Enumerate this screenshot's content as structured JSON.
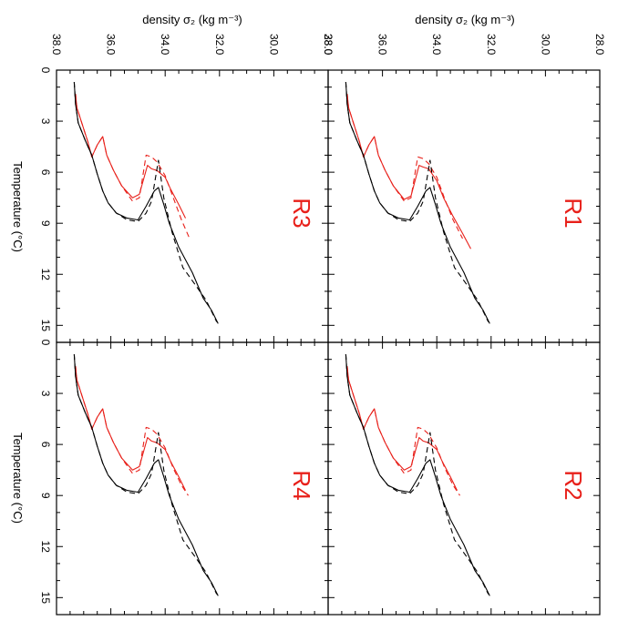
{
  "figure": {
    "x_axis_label": "density σ₂ (kg m⁻³)",
    "y_axis_label": "Temperature (°C)"
  },
  "chart_data": [
    {
      "type": "line",
      "panel": "R3",
      "title": "R3",
      "xlabel": "density σ₂ (kg m⁻³)",
      "ylabel": "Temperature (°C)",
      "xlim": [
        38.0,
        28.0
      ],
      "ylim": [
        0,
        16
      ],
      "x_ticks": [
        "38.0",
        "36.0",
        "34.0",
        "32.0",
        "30.0",
        "28.0"
      ],
      "y_ticks": [
        "0",
        "3",
        "6",
        "9",
        "12",
        "15"
      ],
      "series": [
        {
          "color": "#e8201a",
          "dash": "solid",
          "x": [
            37.3,
            37.25,
            37.05,
            36.85,
            36.7,
            36.5,
            36.3,
            36.15,
            35.9,
            35.6,
            35.2,
            34.95,
            34.65,
            34.5,
            34.3,
            34.0,
            33.8,
            33.5,
            33.25
          ],
          "y": [
            1.4,
            2.2,
            3.2,
            4.2,
            5.1,
            4.4,
            3.9,
            5.0,
            5.9,
            6.8,
            7.5,
            7.3,
            5.6,
            5.8,
            5.9,
            6.3,
            7.0,
            7.9,
            8.7
          ]
        },
        {
          "color": "#e8201a",
          "dash": "dashed",
          "x": [
            37.3,
            37.25,
            37.05,
            36.85,
            36.7,
            36.5,
            36.3,
            36.15,
            35.9,
            35.6,
            35.2,
            34.95,
            34.7,
            34.5,
            34.3,
            34.0,
            33.7,
            33.4,
            33.1
          ],
          "y": [
            1.4,
            2.2,
            3.2,
            4.2,
            5.1,
            4.4,
            3.9,
            5.0,
            5.9,
            6.8,
            7.7,
            7.5,
            5.0,
            5.1,
            5.4,
            6.2,
            7.5,
            8.8,
            9.9
          ]
        },
        {
          "color": "#000000",
          "dash": "solid",
          "x": [
            37.35,
            37.3,
            37.2,
            36.95,
            36.7,
            36.5,
            36.3,
            36.1,
            35.8,
            35.4,
            35.0,
            34.7,
            34.4,
            34.25,
            34.05,
            33.85,
            33.5,
            33.0,
            32.6,
            32.3,
            32.05
          ],
          "y": [
            0.7,
            2.0,
            3.1,
            4.1,
            5.0,
            6.1,
            7.1,
            7.8,
            8.4,
            8.7,
            8.8,
            8.0,
            7.1,
            6.9,
            7.9,
            9.0,
            10.4,
            11.9,
            13.4,
            14.1,
            14.9
          ]
        },
        {
          "color": "#000000",
          "dash": "dashed",
          "x": [
            37.35,
            37.3,
            37.2,
            36.95,
            36.7,
            36.5,
            36.3,
            36.1,
            35.8,
            35.4,
            35.0,
            34.7,
            34.5,
            34.25,
            34.05,
            33.75,
            33.35,
            32.9,
            32.5,
            32.1
          ],
          "y": [
            0.7,
            2.0,
            3.1,
            4.1,
            5.0,
            6.1,
            7.1,
            7.8,
            8.4,
            8.8,
            8.9,
            8.4,
            7.7,
            5.3,
            7.5,
            9.5,
            11.6,
            12.6,
            13.5,
            14.8
          ]
        }
      ]
    },
    {
      "type": "line",
      "panel": "R1",
      "title": "R1",
      "xlabel": "density σ₂ (kg m⁻³)",
      "ylabel": "",
      "xlim": [
        38.0,
        28.0
      ],
      "ylim": [
        0,
        16
      ],
      "x_ticks": [
        "38.0",
        "36.0",
        "34.0",
        "32.0",
        "30.0",
        "28.0"
      ],
      "series": [
        {
          "color": "#e8201a",
          "dash": "solid",
          "x": [
            37.3,
            37.25,
            37.05,
            36.85,
            36.7,
            36.5,
            36.3,
            36.15,
            35.9,
            35.6,
            35.2,
            34.95,
            34.65,
            34.5,
            34.3,
            34.0,
            33.75,
            33.4,
            33.05,
            32.75
          ],
          "y": [
            1.4,
            2.2,
            3.2,
            4.2,
            5.1,
            4.4,
            3.9,
            5.0,
            5.9,
            6.8,
            7.6,
            7.4,
            5.6,
            5.7,
            5.8,
            6.5,
            7.5,
            8.6,
            9.6,
            10.5
          ]
        },
        {
          "color": "#e8201a",
          "dash": "dashed",
          "x": [
            37.3,
            37.25,
            37.05,
            36.85,
            36.7,
            36.5,
            36.3,
            36.15,
            35.9,
            35.6,
            35.2,
            34.95,
            34.7,
            34.5,
            34.3,
            34.0,
            33.7,
            33.4,
            33.05
          ],
          "y": [
            1.4,
            2.2,
            3.2,
            4.2,
            5.1,
            4.4,
            3.9,
            5.0,
            5.9,
            6.8,
            7.7,
            7.5,
            5.1,
            5.2,
            5.5,
            6.3,
            7.6,
            8.8,
            9.9
          ]
        },
        {
          "color": "#000000",
          "dash": "solid",
          "x": [
            37.35,
            37.3,
            37.2,
            36.95,
            36.7,
            36.5,
            36.3,
            36.1,
            35.8,
            35.4,
            35.0,
            34.7,
            34.4,
            34.25,
            34.05,
            33.85,
            33.5,
            33.0,
            32.6,
            32.3,
            32.05
          ],
          "y": [
            0.7,
            2.0,
            3.1,
            4.1,
            5.0,
            6.1,
            7.1,
            7.8,
            8.4,
            8.7,
            8.8,
            8.0,
            7.1,
            6.9,
            7.9,
            9.0,
            10.4,
            11.9,
            13.4,
            14.1,
            14.9
          ]
        },
        {
          "color": "#000000",
          "dash": "dashed",
          "x": [
            37.35,
            37.3,
            37.2,
            36.95,
            36.7,
            36.5,
            36.3,
            36.1,
            35.8,
            35.4,
            35.0,
            34.7,
            34.5,
            34.25,
            34.05,
            33.75,
            33.35,
            32.9,
            32.5,
            32.1
          ],
          "y": [
            0.7,
            2.0,
            3.1,
            4.1,
            5.0,
            6.1,
            7.1,
            7.8,
            8.4,
            8.8,
            8.9,
            8.4,
            7.7,
            5.3,
            7.5,
            9.5,
            11.6,
            12.6,
            13.5,
            14.8
          ]
        }
      ]
    },
    {
      "type": "line",
      "panel": "R4",
      "title": "R4",
      "xlabel": "",
      "ylabel": "Temperature (°C)",
      "xlim": [
        38.0,
        28.0
      ],
      "ylim": [
        0,
        16
      ],
      "y_ticks": [
        "0",
        "3",
        "6",
        "9",
        "12",
        "15"
      ],
      "series": [
        {
          "color": "#e8201a",
          "dash": "solid",
          "x": [
            37.3,
            37.25,
            37.05,
            36.85,
            36.7,
            36.5,
            36.3,
            36.15,
            35.9,
            35.6,
            35.2,
            34.95,
            34.65,
            34.5,
            34.3,
            34.0,
            33.8,
            33.5,
            33.25
          ],
          "y": [
            1.4,
            2.2,
            3.2,
            4.2,
            5.1,
            4.4,
            3.9,
            5.0,
            5.9,
            6.8,
            7.5,
            7.3,
            5.6,
            5.8,
            5.9,
            6.3,
            7.0,
            7.9,
            8.7
          ]
        },
        {
          "color": "#e8201a",
          "dash": "dashed",
          "x": [
            37.3,
            37.25,
            37.05,
            36.85,
            36.7,
            36.5,
            36.3,
            36.15,
            35.9,
            35.6,
            35.2,
            34.95,
            34.7,
            34.5,
            34.3,
            34.0,
            33.7,
            33.4,
            33.15
          ],
          "y": [
            1.4,
            2.2,
            3.2,
            4.2,
            5.1,
            4.4,
            3.9,
            5.0,
            5.9,
            6.8,
            7.7,
            7.5,
            5.0,
            5.1,
            5.4,
            6.2,
            7.4,
            8.4,
            9.0
          ]
        },
        {
          "color": "#000000",
          "dash": "solid",
          "x": [
            37.35,
            37.3,
            37.2,
            36.95,
            36.7,
            36.5,
            36.3,
            36.1,
            35.8,
            35.4,
            35.0,
            34.7,
            34.4,
            34.25,
            34.05,
            33.85,
            33.5,
            33.0,
            32.6,
            32.3,
            32.05
          ],
          "y": [
            0.7,
            2.0,
            3.1,
            4.1,
            5.0,
            6.1,
            7.1,
            7.8,
            8.4,
            8.7,
            8.8,
            8.0,
            7.1,
            6.9,
            7.9,
            9.0,
            10.4,
            11.9,
            13.4,
            14.1,
            14.9
          ]
        },
        {
          "color": "#000000",
          "dash": "dashed",
          "x": [
            37.35,
            37.3,
            37.2,
            36.95,
            36.7,
            36.5,
            36.3,
            36.1,
            35.8,
            35.4,
            35.0,
            34.7,
            34.5,
            34.25,
            34.05,
            33.75,
            33.35,
            32.9,
            32.5,
            32.1
          ],
          "y": [
            0.7,
            2.0,
            3.1,
            4.1,
            5.0,
            6.1,
            7.1,
            7.8,
            8.4,
            8.8,
            8.9,
            8.4,
            7.7,
            5.3,
            7.5,
            9.5,
            11.6,
            12.6,
            13.5,
            14.8
          ]
        }
      ]
    },
    {
      "type": "line",
      "panel": "R2",
      "title": "R2",
      "xlabel": "",
      "ylabel": "",
      "xlim": [
        38.0,
        28.0
      ],
      "ylim": [
        0,
        16
      ],
      "series": [
        {
          "color": "#e8201a",
          "dash": "solid",
          "x": [
            37.3,
            37.25,
            37.05,
            36.85,
            36.7,
            36.5,
            36.3,
            36.15,
            35.9,
            35.6,
            35.2,
            34.95,
            34.65,
            34.5,
            34.3,
            34.0,
            33.8,
            33.5,
            33.25
          ],
          "y": [
            1.4,
            2.2,
            3.2,
            4.2,
            5.1,
            4.4,
            3.9,
            5.0,
            5.9,
            6.8,
            7.5,
            7.3,
            5.6,
            5.8,
            5.9,
            6.3,
            7.0,
            7.9,
            8.7
          ]
        },
        {
          "color": "#e8201a",
          "dash": "dashed",
          "x": [
            37.3,
            37.25,
            37.05,
            36.85,
            36.7,
            36.5,
            36.3,
            36.15,
            35.9,
            35.6,
            35.2,
            34.95,
            34.7,
            34.5,
            34.3,
            34.0,
            33.7,
            33.4,
            33.15
          ],
          "y": [
            1.4,
            2.2,
            3.2,
            4.2,
            5.1,
            4.4,
            3.9,
            5.0,
            5.9,
            6.8,
            7.7,
            7.5,
            5.0,
            5.1,
            5.4,
            6.2,
            7.4,
            8.4,
            9.0
          ]
        },
        {
          "color": "#000000",
          "dash": "solid",
          "x": [
            37.35,
            37.3,
            37.2,
            36.95,
            36.7,
            36.5,
            36.3,
            36.1,
            35.8,
            35.4,
            35.0,
            34.7,
            34.4,
            34.25,
            34.05,
            33.85,
            33.5,
            33.0,
            32.6,
            32.3,
            32.05
          ],
          "y": [
            0.7,
            2.0,
            3.1,
            4.1,
            5.0,
            6.1,
            7.1,
            7.8,
            8.4,
            8.7,
            8.8,
            8.0,
            7.1,
            6.9,
            7.9,
            9.0,
            10.4,
            11.9,
            13.4,
            14.1,
            14.9
          ]
        },
        {
          "color": "#000000",
          "dash": "dashed",
          "x": [
            37.35,
            37.3,
            37.2,
            36.95,
            36.7,
            36.5,
            36.3,
            36.1,
            35.8,
            35.4,
            35.0,
            34.7,
            34.5,
            34.25,
            34.05,
            33.75,
            33.35,
            32.9,
            32.5,
            32.1
          ],
          "y": [
            0.7,
            2.0,
            3.1,
            4.1,
            5.0,
            6.1,
            7.1,
            7.8,
            8.4,
            8.8,
            8.9,
            8.4,
            7.7,
            5.3,
            7.5,
            9.5,
            11.6,
            12.6,
            13.5,
            14.8
          ]
        }
      ]
    }
  ]
}
